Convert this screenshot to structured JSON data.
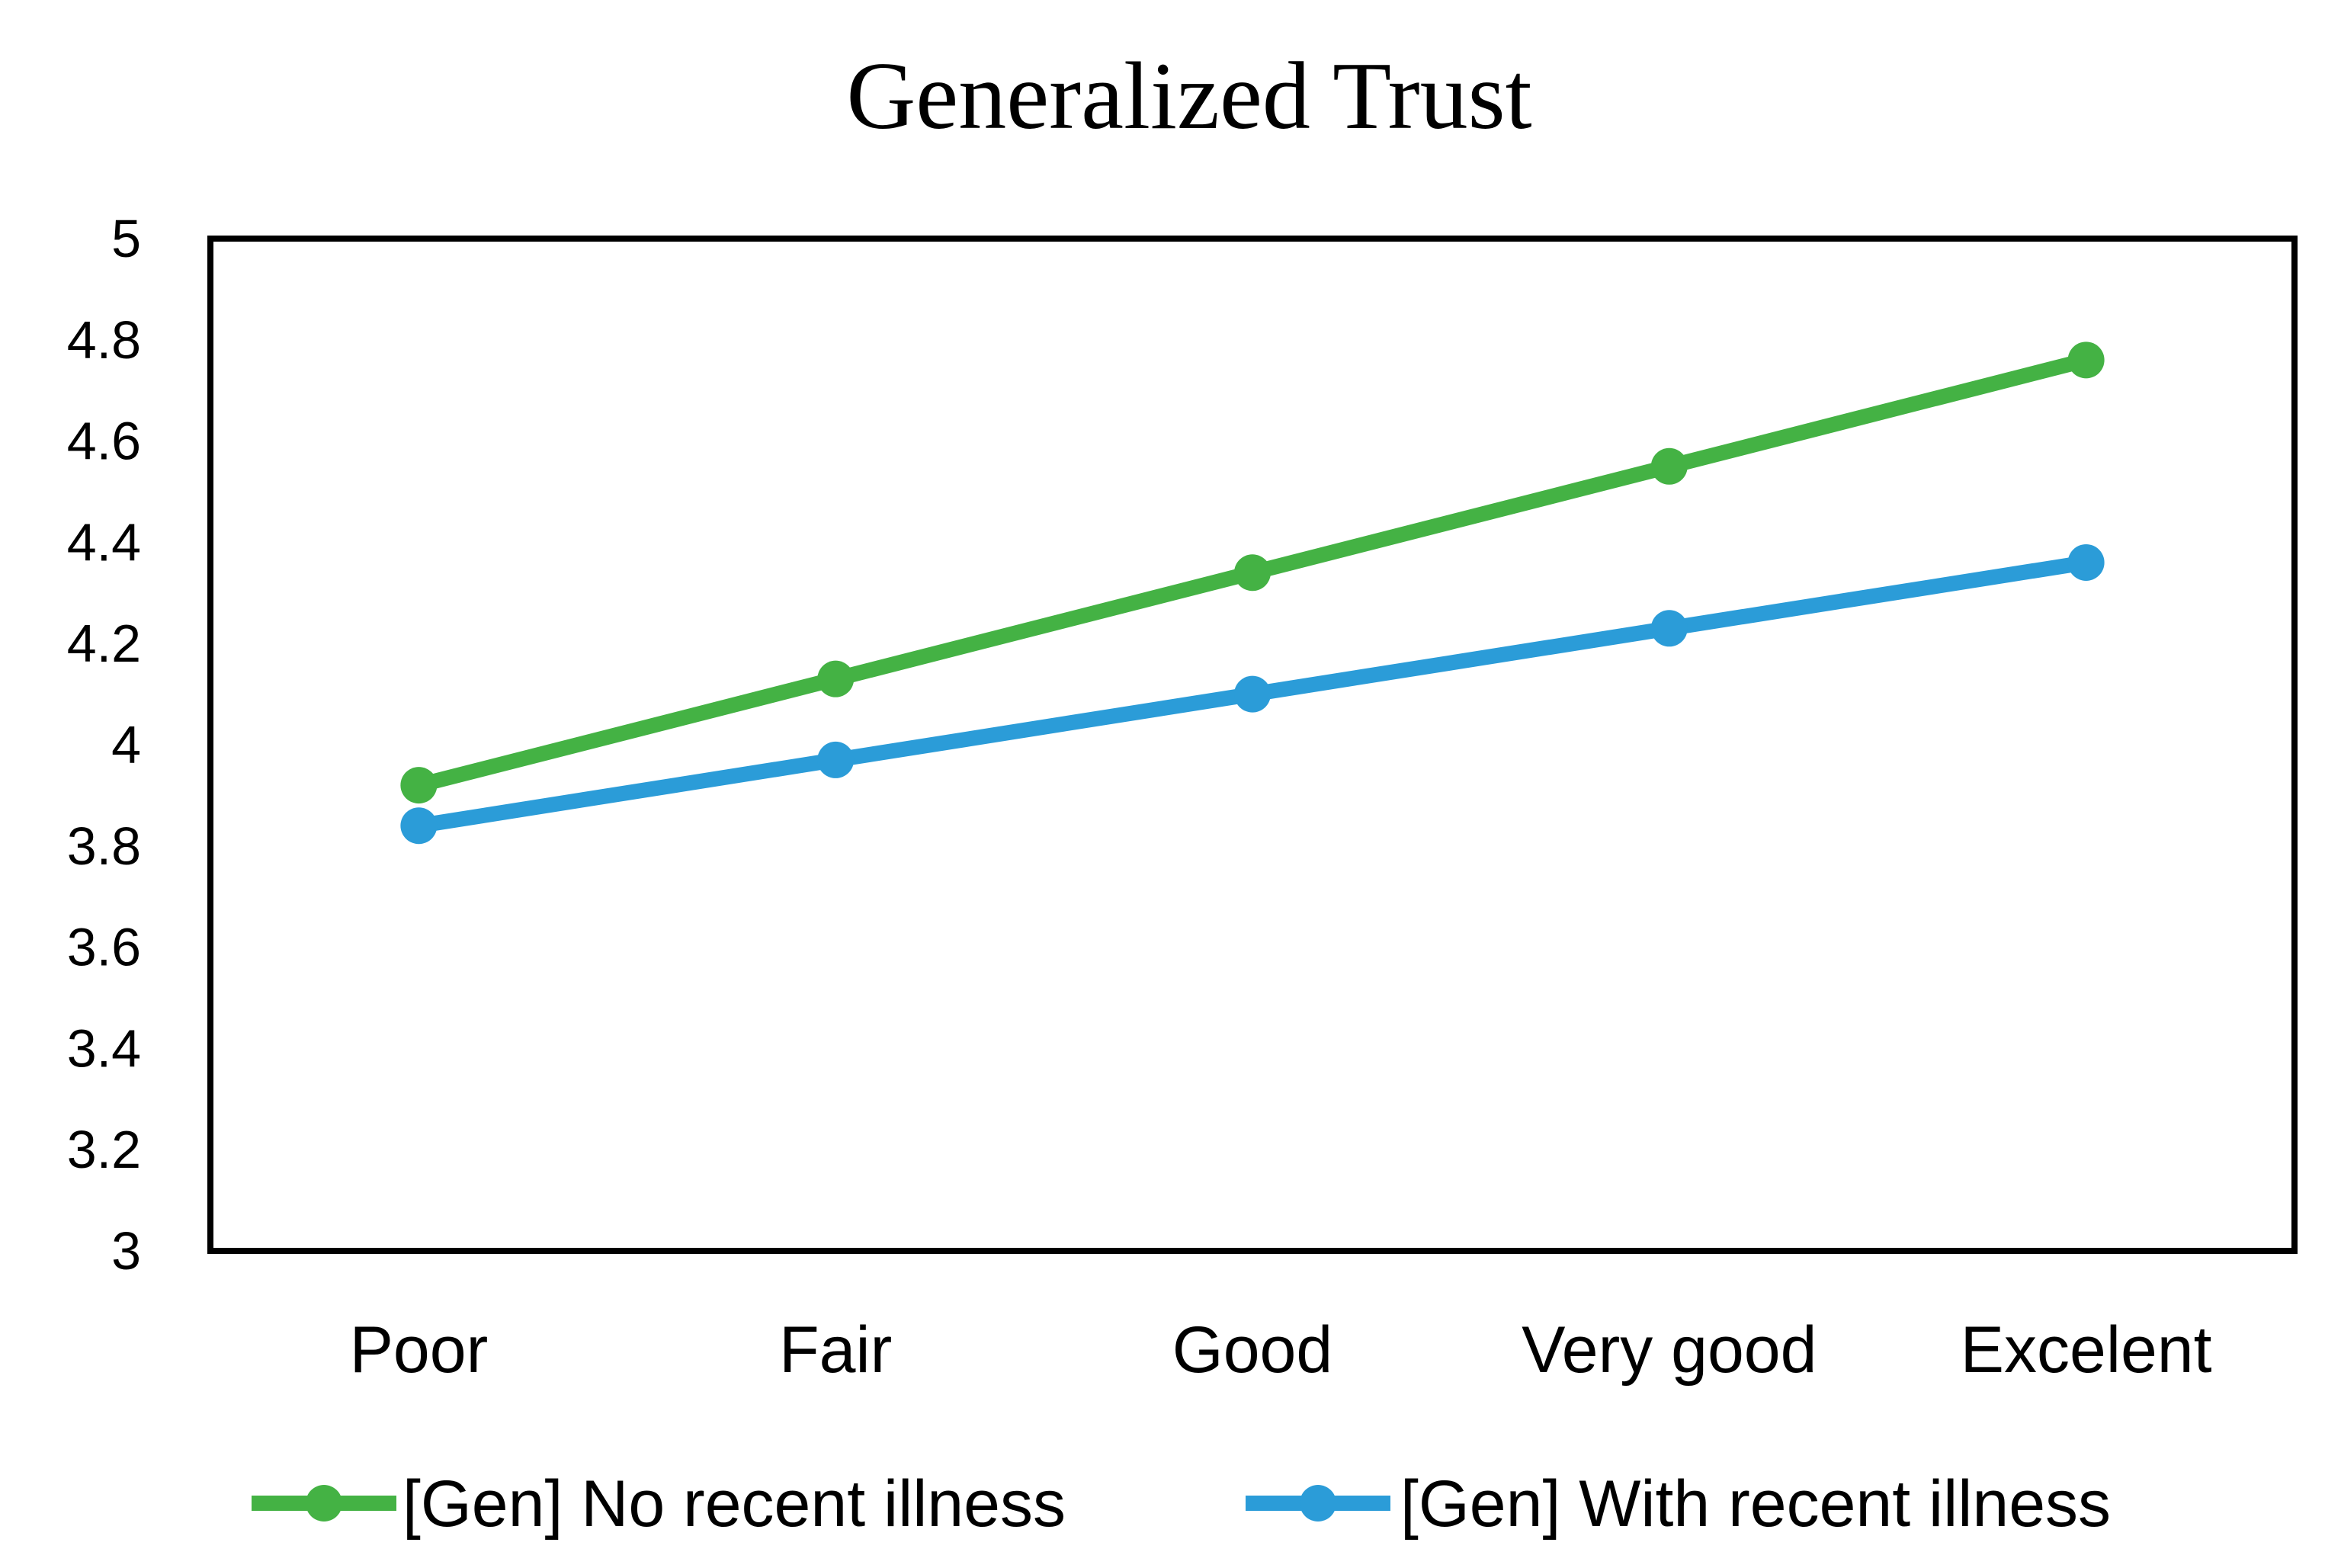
{
  "chart_data": {
    "type": "line",
    "title": "Generalized Trust",
    "xlabel": "",
    "ylabel": "",
    "categories": [
      "Poor",
      "Fair",
      "Good",
      "Very good",
      "Excelent"
    ],
    "series": [
      {
        "name": "[Gen] No recent illness",
        "color": "#44B244",
        "values": [
          3.92,
          4.13,
          4.34,
          4.55,
          4.76
        ]
      },
      {
        "name": "[Gen] With recent illness",
        "color": "#2B9CD8",
        "values": [
          3.84,
          3.97,
          4.1,
          4.23,
          4.36
        ]
      }
    ],
    "ylim": [
      3,
      5
    ],
    "yticks": [
      {
        "label": "5",
        "value": 5.0
      },
      {
        "label": "4.8",
        "value": 4.8
      },
      {
        "label": "4.6",
        "value": 4.6
      },
      {
        "label": "4.4",
        "value": 4.4
      },
      {
        "label": "4.2",
        "value": 4.2
      },
      {
        "label": "4",
        "value": 4.0
      },
      {
        "label": "3.8",
        "value": 3.8
      },
      {
        "label": "3.6",
        "value": 3.6
      },
      {
        "label": "3.4",
        "value": 3.4
      },
      {
        "label": "3.2",
        "value": 3.2
      },
      {
        "label": "3",
        "value": 3.0
      }
    ],
    "grid": false,
    "legend_position": "bottom",
    "axis_color": "#000000",
    "plot_background": "#FFFFFF"
  }
}
